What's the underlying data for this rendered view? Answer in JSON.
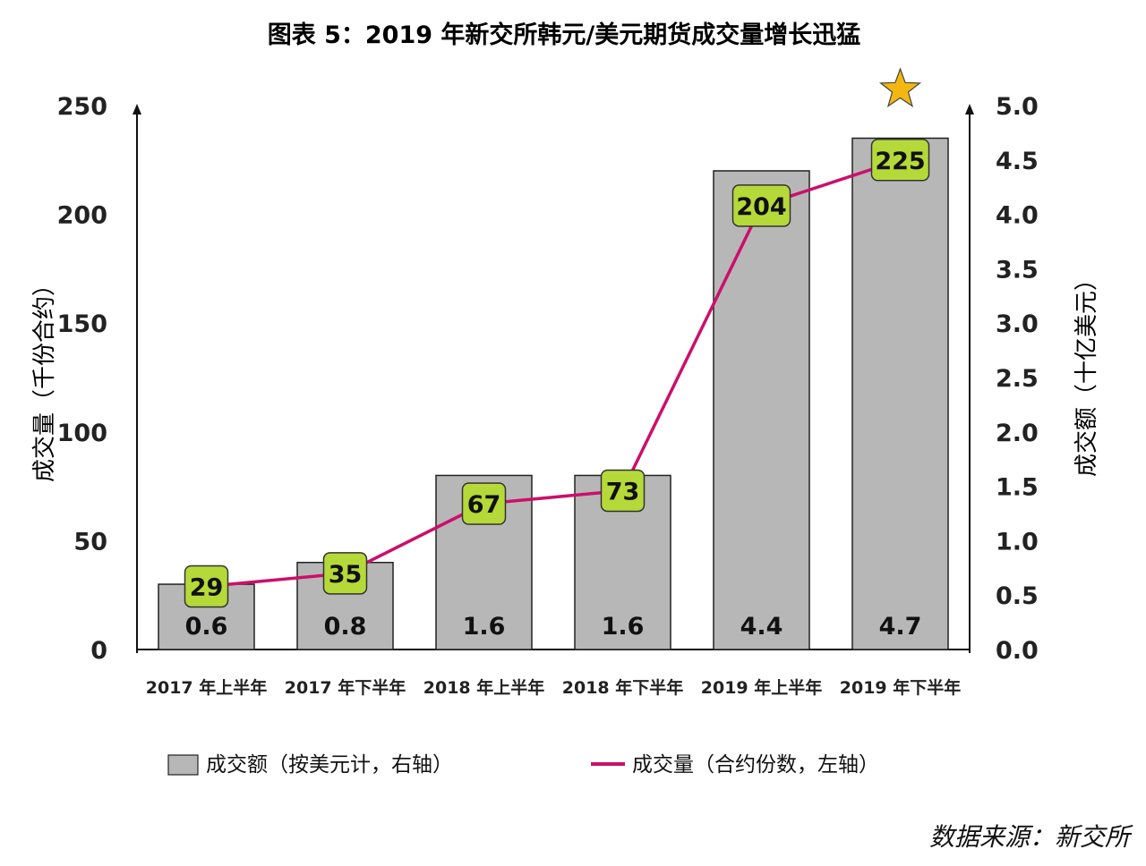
{
  "title": "图表 5：2019 年新交所韩元/美元期货成交量增长迅猛",
  "source": "数据来源：新交所",
  "colors": {
    "bar": "#b7b7b7",
    "bar_stroke": "#222222",
    "line": "#cc0f6a",
    "point_fill": "#b6d93a",
    "star": "#f2b712"
  },
  "chart_data": {
    "type": "bar",
    "categories": [
      "2017 年上半年",
      "2017 年下半年",
      "2018 年上半年",
      "2018 年下半年",
      "2019 年上半年",
      "2019 年下半年"
    ],
    "left_axis": {
      "label": "成交量（千份合约）",
      "ylim": [
        0,
        250
      ],
      "ticks": [
        "0",
        "50",
        "100",
        "150",
        "200",
        "250"
      ]
    },
    "right_axis": {
      "label": "成交额（十亿美元）",
      "ylim": [
        0,
        5
      ],
      "ticks": [
        "0.0",
        "0.5",
        "1.0",
        "1.5",
        "2.0",
        "2.5",
        "3.0",
        "3.5",
        "4.0",
        "4.5",
        "5.0"
      ]
    },
    "series": [
      {
        "name": "成交额（按美元计，右轴）",
        "type": "bar",
        "axis": "right",
        "values": [
          0.6,
          0.8,
          1.6,
          1.6,
          4.4,
          4.7
        ],
        "labels": [
          "0.6",
          "0.8",
          "1.6",
          "1.6",
          "4.4",
          "4.7"
        ]
      },
      {
        "name": "成交量（合约份数，左轴）",
        "type": "line",
        "axis": "left",
        "values": [
          29,
          35,
          67,
          73,
          204,
          225
        ],
        "labels": [
          "29",
          "35",
          "67",
          "73",
          "204",
          "225"
        ]
      }
    ],
    "grid": false,
    "legend": "bottom"
  }
}
